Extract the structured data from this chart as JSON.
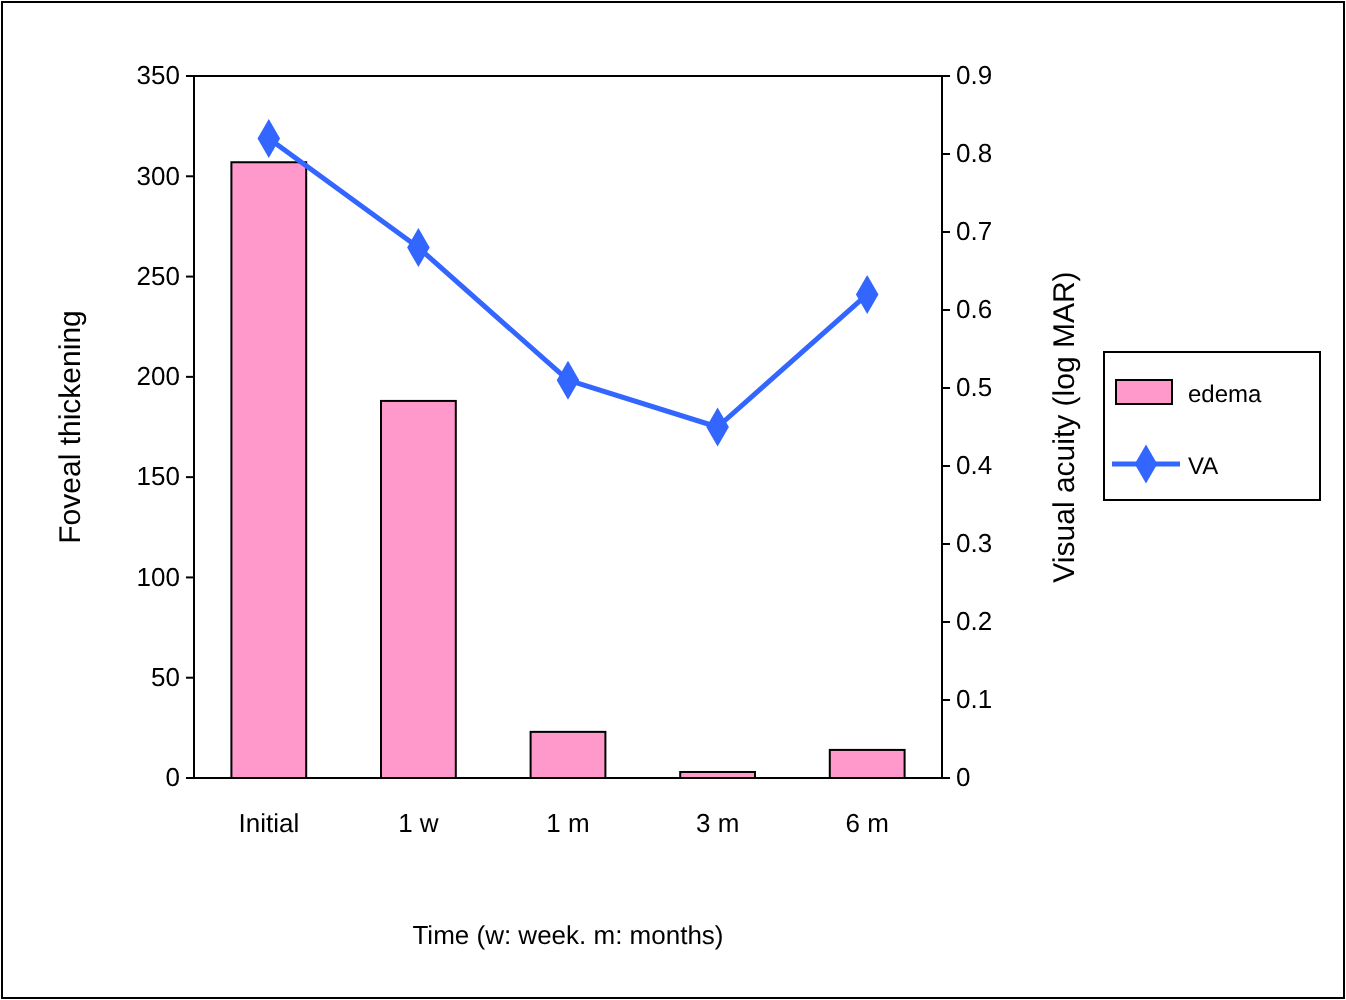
{
  "chart_data": {
    "type": "bar",
    "xlabel": "Time (w: week. m: months)",
    "ylabel": "Foveal thickening",
    "y2label": "Visual acuity (log MAR)",
    "categories": [
      "Initial",
      "1 w",
      "1 m",
      "3 m",
      "6 m"
    ],
    "series": [
      {
        "name": "edema",
        "color": "#ff99cc",
        "values": [
          307,
          188,
          23,
          3,
          14
        ]
      },
      {
        "name": "VA",
        "type": "line",
        "axis": "y2",
        "color": "#3366ff",
        "values": [
          0.82,
          0.68,
          0.51,
          0.45,
          0.62
        ]
      }
    ],
    "ylim": [
      0,
      350
    ],
    "yticks": [
      0,
      50,
      100,
      150,
      200,
      250,
      300,
      350
    ],
    "y2lim": [
      0,
      0.9
    ],
    "y2ticks": [
      0,
      0.1,
      0.2,
      0.3,
      0.4,
      0.5,
      0.6,
      0.7,
      0.8,
      0.9
    ],
    "marker": "diamond",
    "legend": "right",
    "grid": false
  }
}
